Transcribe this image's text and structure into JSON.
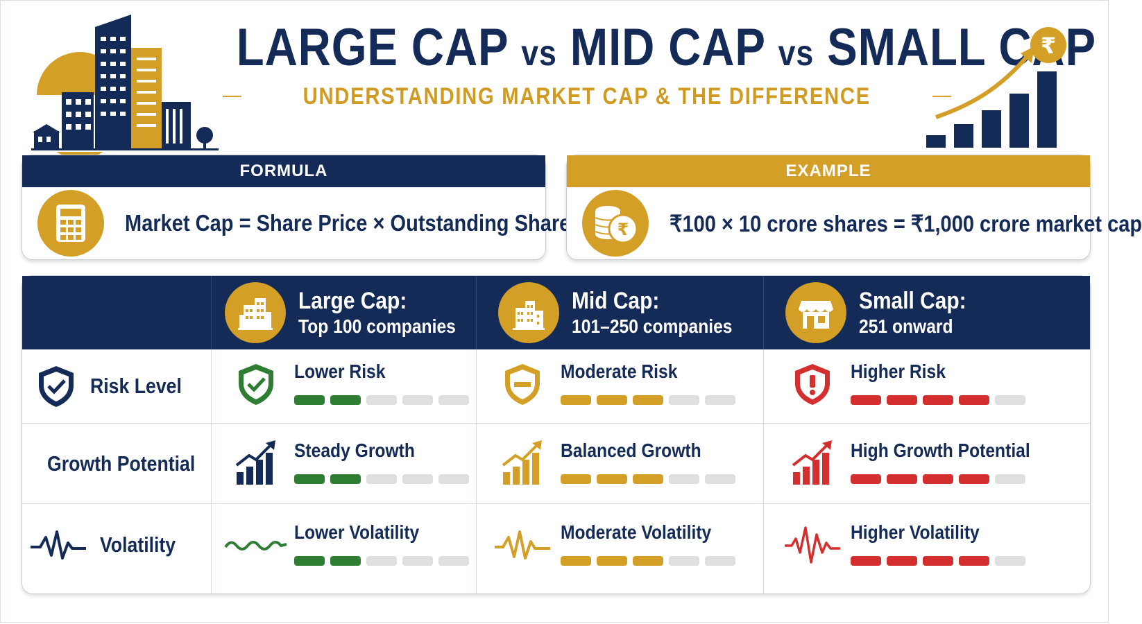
{
  "header": {
    "title_part1": "LARGE CAP",
    "vs1": "vs",
    "title_part2": "MID CAP",
    "vs2": "vs",
    "title_part3": "SMALL CAP",
    "subtitle": "UNDERSTANDING MARKET CAP & THE DIFFERENCE",
    "rupee_symbol": "₹"
  },
  "formula": {
    "heading": "FORMULA",
    "text": "Market Cap = Share Price × Outstanding Shares",
    "icon": "calculator-icon"
  },
  "example": {
    "heading": "EXAMPLE",
    "text": "₹100 × 10 crore shares = ₹1,000 crore market cap",
    "icon": "coins-icon",
    "coin_symbol": "₹"
  },
  "columns": [
    {
      "title": "Large Cap:",
      "subtitle": "Top 100 companies",
      "icon": "city-buildings-icon"
    },
    {
      "title": "Mid Cap:",
      "subtitle": "101–250 companies",
      "icon": "office-buildings-icon"
    },
    {
      "title": "Small Cap:",
      "subtitle": "251 onward",
      "icon": "storefront-icon"
    }
  ],
  "rows": [
    {
      "label": "Risk Level",
      "icon": "shield-check-icon",
      "cells": [
        {
          "text": "Lower Risk",
          "level": 2,
          "color": "#2e7d32",
          "icon": "shield-check-icon"
        },
        {
          "text": "Moderate Risk",
          "level": 3,
          "color": "#d49f26",
          "icon": "shield-minus-icon"
        },
        {
          "text": "Higher Risk",
          "level": 4,
          "color": "#d32f2f",
          "icon": "shield-alert-icon"
        }
      ]
    },
    {
      "label": "Growth Potential",
      "icon": "growth-chart-icon",
      "cells": [
        {
          "text": "Steady Growth",
          "level": 2,
          "color": "#2e7d32",
          "icon": "growth-chart-icon"
        },
        {
          "text": "Balanced Growth",
          "level": 3,
          "color": "#d49f26",
          "icon": "growth-chart-icon"
        },
        {
          "text": "High Growth Potential",
          "level": 4,
          "color": "#d32f2f",
          "icon": "growth-chart-icon"
        }
      ]
    },
    {
      "label": "Volatility",
      "icon": "pulse-wave-icon",
      "cells": [
        {
          "text": "Lower Volatility",
          "level": 2,
          "color": "#2e7d32",
          "icon": "gentle-wave-icon"
        },
        {
          "text": "Moderate Volatility",
          "level": 3,
          "color": "#d49f26",
          "icon": "pulse-wave-icon"
        },
        {
          "text": "Higher Volatility",
          "level": 4,
          "color": "#d32f2f",
          "icon": "pulse-wave-icon"
        }
      ]
    }
  ],
  "scale_max": 5,
  "colors": {
    "navy": "#142a57",
    "gold": "#d49f26",
    "green": "#2e7d32",
    "red": "#d32f2f"
  }
}
